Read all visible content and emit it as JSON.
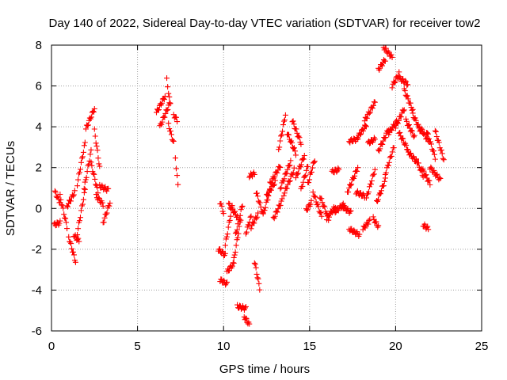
{
  "chart_data": {
    "type": "scatter",
    "title": "Day 140 of 2022, Sidereal Day-to-day VTEC variation (SDTVAR) for receiver tow2",
    "xlabel": "GPS time / hours",
    "ylabel": "SDTVAR / TECUs",
    "xlim": [
      0,
      25
    ],
    "ylim": [
      -6,
      8
    ],
    "xticks": [
      0,
      5,
      10,
      15,
      20,
      25
    ],
    "yticks": [
      -6,
      -4,
      -2,
      0,
      2,
      4,
      6,
      8
    ],
    "grid": true,
    "marker": "+",
    "color": "#ff0000",
    "tracks": [
      {
        "x": [
          0.2,
          0.5
        ],
        "y": [
          0.8,
          0.3
        ]
      },
      {
        "x": [
          0.15,
          0.5
        ],
        "y": [
          -0.8,
          -0.7
        ]
      },
      {
        "x": [
          0.5,
          0.9
        ],
        "y": [
          0.6,
          -0.9
        ]
      },
      {
        "x": [
          0.9,
          1.35
        ],
        "y": [
          0.1,
          0.8
        ]
      },
      {
        "x": [
          1.0,
          1.4
        ],
        "y": [
          -1.4,
          -2.6
        ]
      },
      {
        "x": [
          1.3,
          1.6
        ],
        "y": [
          -1.3,
          -1.6
        ]
      },
      {
        "x": [
          1.5,
          1.95
        ],
        "y": [
          -1.2,
          0.9
        ]
      },
      {
        "x": [
          1.5,
          1.95
        ],
        "y": [
          1.2,
          3.2
        ]
      },
      {
        "x": [
          1.9,
          2.3
        ],
        "y": [
          1.0,
          2.8
        ]
      },
      {
        "x": [
          2.0,
          2.5
        ],
        "y": [
          3.9,
          4.9
        ]
      },
      {
        "x": [
          2.3,
          2.7
        ],
        "y": [
          2.2,
          0.8
        ]
      },
      {
        "x": [
          2.5,
          2.8
        ],
        "y": [
          3.8,
          2.0
        ]
      },
      {
        "x": [
          2.6,
          3.0
        ],
        "y": [
          0.6,
          0.2
        ]
      },
      {
        "x": [
          2.8,
          3.3
        ],
        "y": [
          1.1,
          0.9
        ]
      },
      {
        "x": [
          3.0,
          3.4
        ],
        "y": [
          -0.7,
          0.3
        ]
      },
      {
        "x": [
          6.1,
          6.6
        ],
        "y": [
          4.7,
          5.5
        ]
      },
      {
        "x": [
          6.3,
          6.9
        ],
        "y": [
          4.0,
          5.2
        ]
      },
      {
        "x": [
          6.7,
          6.9
        ],
        "y": [
          6.3,
          5.1
        ]
      },
      {
        "x": [
          6.8,
          7.1
        ],
        "y": [
          4.1,
          3.2
        ]
      },
      {
        "x": [
          7.1,
          7.3
        ],
        "y": [
          4.6,
          4.3
        ]
      },
      {
        "x": [
          7.2,
          7.35
        ],
        "y": [
          2.5,
          1.1
        ]
      },
      {
        "x": [
          9.8,
          10.0
        ],
        "y": [
          0.3,
          -0.2
        ]
      },
      {
        "x": [
          9.7,
          10.1
        ],
        "y": [
          -2.0,
          -2.3
        ]
      },
      {
        "x": [
          9.8,
          10.2
        ],
        "y": [
          -3.5,
          -3.7
        ]
      },
      {
        "x": [
          10.1,
          10.5
        ],
        "y": [
          -1.8,
          0.1
        ]
      },
      {
        "x": [
          10.2,
          10.6
        ],
        "y": [
          -3.1,
          -2.7
        ]
      },
      {
        "x": [
          10.3,
          10.8
        ],
        "y": [
          0.2,
          -0.4
        ]
      },
      {
        "x": [
          10.6,
          11.0
        ],
        "y": [
          -2.5,
          -0.5
        ]
      },
      {
        "x": [
          10.7,
          11.1
        ],
        "y": [
          -1.3,
          0.2
        ]
      },
      {
        "x": [
          10.8,
          11.3
        ],
        "y": [
          -4.8,
          -4.9
        ]
      },
      {
        "x": [
          11.2,
          11.5
        ],
        "y": [
          -5.3,
          -5.7
        ]
      },
      {
        "x": [
          11.3,
          11.6
        ],
        "y": [
          -1.2,
          -0.4
        ]
      },
      {
        "x": [
          11.5,
          11.8
        ],
        "y": [
          1.6,
          1.7
        ]
      },
      {
        "x": [
          11.6,
          12.0
        ],
        "y": [
          -0.9,
          -0.3
        ]
      },
      {
        "x": [
          11.8,
          12.1
        ],
        "y": [
          -2.6,
          -3.9
        ]
      },
      {
        "x": [
          11.9,
          12.3
        ],
        "y": [
          0.8,
          -0.3
        ]
      },
      {
        "x": [
          12.3,
          12.7
        ],
        "y": [
          -0.3,
          0.9
        ]
      },
      {
        "x": [
          12.5,
          13.0
        ],
        "y": [
          0.6,
          1.3
        ]
      },
      {
        "x": [
          12.7,
          13.3
        ],
        "y": [
          1.2,
          2.1
        ]
      },
      {
        "x": [
          12.9,
          13.4
        ],
        "y": [
          -0.5,
          0.4
        ]
      },
      {
        "x": [
          13.2,
          13.6
        ],
        "y": [
          2.9,
          4.6
        ]
      },
      {
        "x": [
          13.3,
          13.9
        ],
        "y": [
          1.0,
          2.3
        ]
      },
      {
        "x": [
          13.5,
          14.1
        ],
        "y": [
          0.7,
          1.9
        ]
      },
      {
        "x": [
          13.7,
          14.2
        ],
        "y": [
          3.7,
          2.7
        ]
      },
      {
        "x": [
          14.0,
          14.5
        ],
        "y": [
          4.3,
          3.2
        ]
      },
      {
        "x": [
          14.2,
          14.7
        ],
        "y": [
          1.5,
          2.6
        ]
      },
      {
        "x": [
          14.5,
          14.9
        ],
        "y": [
          0.9,
          2.1
        ]
      },
      {
        "x": [
          14.8,
          15.1
        ],
        "y": [
          -0.1,
          0.3
        ]
      },
      {
        "x": [
          14.9,
          15.3
        ],
        "y": [
          1.2,
          2.4
        ]
      },
      {
        "x": [
          15.2,
          15.7
        ],
        "y": [
          0.8,
          -0.4
        ]
      },
      {
        "x": [
          15.6,
          16.1
        ],
        "y": [
          0.6,
          -0.5
        ]
      },
      {
        "x": [
          16.0,
          16.5
        ],
        "y": [
          -0.5,
          0.1
        ]
      },
      {
        "x": [
          16.3,
          16.7
        ],
        "y": [
          1.8,
          1.9
        ]
      },
      {
        "x": [
          16.4,
          17.0
        ],
        "y": [
          -0.2,
          0.2
        ]
      },
      {
        "x": [
          16.9,
          17.4
        ],
        "y": [
          0.1,
          -0.2
        ]
      },
      {
        "x": [
          17.2,
          17.8
        ],
        "y": [
          0.8,
          2.0
        ]
      },
      {
        "x": [
          17.3,
          17.8
        ],
        "y": [
          3.3,
          3.4
        ]
      },
      {
        "x": [
          17.3,
          17.9
        ],
        "y": [
          -1.0,
          -1.3
        ]
      },
      {
        "x": [
          17.8,
          18.3
        ],
        "y": [
          3.5,
          4.1
        ]
      },
      {
        "x": [
          17.7,
          18.2
        ],
        "y": [
          0.8,
          0.6
        ]
      },
      {
        "x": [
          18.1,
          18.5
        ],
        "y": [
          -1.0,
          -0.6
        ]
      },
      {
        "x": [
          18.2,
          18.8
        ],
        "y": [
          4.3,
          5.2
        ]
      },
      {
        "x": [
          18.3,
          18.8
        ],
        "y": [
          0.5,
          1.9
        ]
      },
      {
        "x": [
          18.4,
          18.8
        ],
        "y": [
          3.2,
          3.4
        ]
      },
      {
        "x": [
          18.7,
          19.0
        ],
        "y": [
          -0.5,
          -0.9
        ]
      },
      {
        "x": [
          18.9,
          19.4
        ],
        "y": [
          0.3,
          1.4
        ]
      },
      {
        "x": [
          19.0,
          19.6
        ],
        "y": [
          2.8,
          3.9
        ]
      },
      {
        "x": [
          19.0,
          19.4
        ],
        "y": [
          6.8,
          7.3
        ]
      },
      {
        "x": [
          19.3,
          19.8
        ],
        "y": [
          7.9,
          7.4
        ]
      },
      {
        "x": [
          19.4,
          19.9
        ],
        "y": [
          1.7,
          3.0
        ]
      },
      {
        "x": [
          19.6,
          20.1
        ],
        "y": [
          3.7,
          4.3
        ]
      },
      {
        "x": [
          19.8,
          20.2
        ],
        "y": [
          6.0,
          6.6
        ]
      },
      {
        "x": [
          20.2,
          20.7
        ],
        "y": [
          6.4,
          6.1
        ]
      },
      {
        "x": [
          20.0,
          20.5
        ],
        "y": [
          4.0,
          4.9
        ]
      },
      {
        "x": [
          20.2,
          20.7
        ],
        "y": [
          3.7,
          2.9
        ]
      },
      {
        "x": [
          20.5,
          21.0
        ],
        "y": [
          5.8,
          4.8
        ]
      },
      {
        "x": [
          20.6,
          21.1
        ],
        "y": [
          4.3,
          3.5
        ]
      },
      {
        "x": [
          20.7,
          21.2
        ],
        "y": [
          2.8,
          2.3
        ]
      },
      {
        "x": [
          21.0,
          21.5
        ],
        "y": [
          4.6,
          3.7
        ]
      },
      {
        "x": [
          21.2,
          21.6
        ],
        "y": [
          2.4,
          1.6
        ]
      },
      {
        "x": [
          21.4,
          21.9
        ],
        "y": [
          4.0,
          3.3
        ]
      },
      {
        "x": [
          21.5,
          22.0
        ],
        "y": [
          2.0,
          1.2
        ]
      },
      {
        "x": [
          21.6,
          21.9
        ],
        "y": [
          -0.8,
          -1.0
        ]
      },
      {
        "x": [
          21.8,
          22.3
        ],
        "y": [
          3.8,
          2.5
        ]
      },
      {
        "x": [
          22.0,
          22.6
        ],
        "y": [
          2.0,
          1.4
        ]
      },
      {
        "x": [
          22.3,
          22.8
        ],
        "y": [
          3.8,
          2.4
        ]
      }
    ]
  }
}
